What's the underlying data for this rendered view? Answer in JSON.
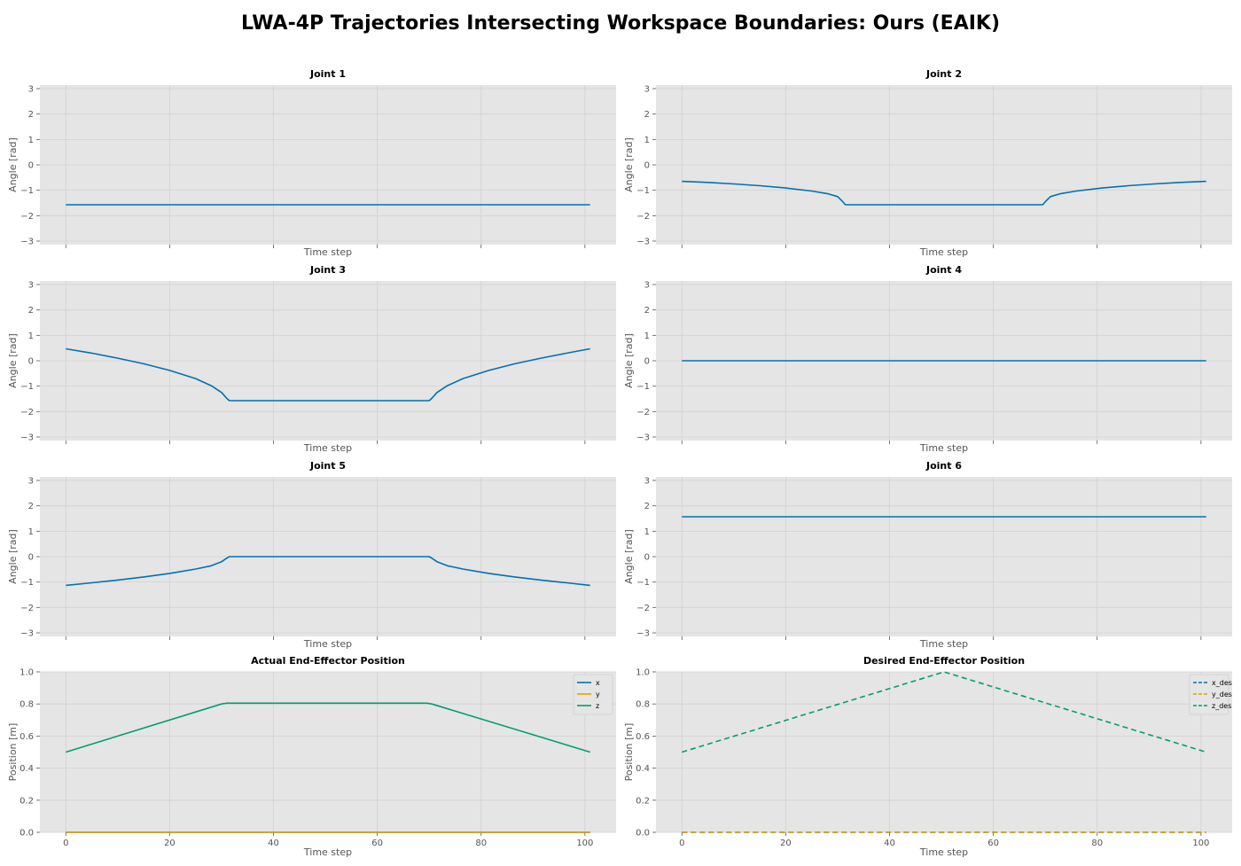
{
  "title": "LWA-4P Trajectories Intersecting Workspace Boundaries: Ours (EAIK)",
  "chart_data": [
    {
      "type": "line",
      "title": "Joint 1",
      "xlabel": "Time step",
      "ylabel": "Angle [rad]",
      "xlim": [
        -5,
        106
      ],
      "ylim": [
        -3.14,
        3.14
      ],
      "xticks": [
        0,
        20,
        40,
        60,
        80,
        100
      ],
      "xticklabels_visible": false,
      "yticks": [
        -3,
        -2,
        -1,
        0,
        1,
        2,
        3
      ],
      "grid": true,
      "series": [
        {
          "color": "#0072B2",
          "dash": "",
          "points": [
            [
              0,
              -1.571
            ],
            [
              101,
              -1.571
            ]
          ]
        }
      ]
    },
    {
      "type": "line",
      "title": "Joint 2",
      "xlabel": "Time step",
      "ylabel": "Angle [rad]",
      "xlim": [
        -5,
        106
      ],
      "ylim": [
        -3.14,
        3.14
      ],
      "xticks": [
        0,
        20,
        40,
        60,
        80,
        100
      ],
      "xticklabels_visible": false,
      "yticks": [
        -3,
        -2,
        -1,
        0,
        1,
        2,
        3
      ],
      "grid": true,
      "series": [
        {
          "color": "#0072B2",
          "dash": "",
          "points": [
            [
              0,
              -0.65
            ],
            [
              5,
              -0.69
            ],
            [
              10,
              -0.75
            ],
            [
              15,
              -0.82
            ],
            [
              20,
              -0.91
            ],
            [
              25,
              -1.03
            ],
            [
              28,
              -1.13
            ],
            [
              30,
              -1.25
            ],
            [
              31,
              -1.45
            ],
            [
              31.5,
              -1.571
            ],
            [
              69.5,
              -1.571
            ],
            [
              70,
              -1.45
            ],
            [
              71,
              -1.25
            ],
            [
              73,
              -1.13
            ],
            [
              76,
              -1.03
            ],
            [
              81,
              -0.91
            ],
            [
              86,
              -0.82
            ],
            [
              91,
              -0.75
            ],
            [
              96,
              -0.69
            ],
            [
              101,
              -0.65
            ]
          ]
        }
      ]
    },
    {
      "type": "line",
      "title": "Joint 3",
      "xlabel": "Time step",
      "ylabel": "Angle [rad]",
      "xlim": [
        -5,
        106
      ],
      "ylim": [
        -3.14,
        3.14
      ],
      "xticks": [
        0,
        20,
        40,
        60,
        80,
        100
      ],
      "xticklabels_visible": false,
      "yticks": [
        -3,
        -2,
        -1,
        0,
        1,
        2,
        3
      ],
      "grid": true,
      "series": [
        {
          "color": "#0072B2",
          "dash": "",
          "points": [
            [
              0,
              0.47
            ],
            [
              5,
              0.3
            ],
            [
              10,
              0.1
            ],
            [
              15,
              -0.12
            ],
            [
              20,
              -0.38
            ],
            [
              25,
              -0.7
            ],
            [
              28,
              -0.98
            ],
            [
              30,
              -1.25
            ],
            [
              31,
              -1.48
            ],
            [
              31.5,
              -1.571
            ],
            [
              70,
              -1.571
            ],
            [
              70.5,
              -1.48
            ],
            [
              71.5,
              -1.25
            ],
            [
              73.5,
              -0.98
            ],
            [
              76.5,
              -0.7
            ],
            [
              81.5,
              -0.38
            ],
            [
              86.5,
              -0.12
            ],
            [
              91.5,
              0.1
            ],
            [
              96.5,
              0.3
            ],
            [
              101,
              0.47
            ]
          ]
        }
      ]
    },
    {
      "type": "line",
      "title": "Joint 4",
      "xlabel": "Time step",
      "ylabel": "Angle [rad]",
      "xlim": [
        -5,
        106
      ],
      "ylim": [
        -3.14,
        3.14
      ],
      "xticks": [
        0,
        20,
        40,
        60,
        80,
        100
      ],
      "xticklabels_visible": false,
      "yticks": [
        -3,
        -2,
        -1,
        0,
        1,
        2,
        3
      ],
      "grid": true,
      "series": [
        {
          "color": "#0072B2",
          "dash": "",
          "points": [
            [
              0,
              0
            ],
            [
              101,
              0
            ]
          ]
        }
      ]
    },
    {
      "type": "line",
      "title": "Joint 5",
      "xlabel": "Time step",
      "ylabel": "Angle [rad]",
      "xlim": [
        -5,
        106
      ],
      "ylim": [
        -3.14,
        3.14
      ],
      "xticks": [
        0,
        20,
        40,
        60,
        80,
        100
      ],
      "xticklabels_visible": false,
      "yticks": [
        -3,
        -2,
        -1,
        0,
        1,
        2,
        3
      ],
      "grid": true,
      "series": [
        {
          "color": "#0072B2",
          "dash": "",
          "points": [
            [
              0,
              -1.13
            ],
            [
              5,
              -1.03
            ],
            [
              10,
              -0.92
            ],
            [
              15,
              -0.8
            ],
            [
              20,
              -0.66
            ],
            [
              25,
              -0.49
            ],
            [
              28,
              -0.36
            ],
            [
              30,
              -0.2
            ],
            [
              31,
              -0.06
            ],
            [
              31.5,
              0
            ],
            [
              70,
              0
            ],
            [
              70.5,
              -0.06
            ],
            [
              71.5,
              -0.2
            ],
            [
              73.5,
              -0.36
            ],
            [
              76.5,
              -0.49
            ],
            [
              81.5,
              -0.66
            ],
            [
              86.5,
              -0.8
            ],
            [
              91.5,
              -0.92
            ],
            [
              96.5,
              -1.03
            ],
            [
              101,
              -1.13
            ]
          ]
        }
      ]
    },
    {
      "type": "line",
      "title": "Joint 6",
      "xlabel": "Time step",
      "ylabel": "Angle [rad]",
      "xlim": [
        -5,
        106
      ],
      "ylim": [
        -3.14,
        3.14
      ],
      "xticks": [
        0,
        20,
        40,
        60,
        80,
        100
      ],
      "xticklabels_visible": false,
      "yticks": [
        -3,
        -2,
        -1,
        0,
        1,
        2,
        3
      ],
      "grid": true,
      "series": [
        {
          "color": "#0072B2",
          "dash": "",
          "points": [
            [
              0,
              1.571
            ],
            [
              101,
              1.571
            ]
          ]
        }
      ]
    },
    {
      "type": "line",
      "title": "Actual End-Effector Position",
      "xlabel": "Time step",
      "ylabel": "Position [m]",
      "xlim": [
        -5,
        106
      ],
      "ylim": [
        0,
        1
      ],
      "xticks": [
        0,
        20,
        40,
        60,
        80,
        100
      ],
      "xticklabels_visible": true,
      "yticks": [
        0,
        0.2,
        0.4,
        0.6,
        0.8,
        1.0
      ],
      "ytick_decimals": 1,
      "grid": true,
      "legend": "top-right",
      "series": [
        {
          "name": "x",
          "color": "#0072B2",
          "dash": "",
          "points": [
            [
              0,
              0
            ],
            [
              101,
              0
            ]
          ]
        },
        {
          "name": "y",
          "color": "#E69F00",
          "dash": "",
          "points": [
            [
              0,
              0
            ],
            [
              101,
              0
            ]
          ]
        },
        {
          "name": "z",
          "color": "#009E73",
          "dash": "",
          "points": [
            [
              0,
              0.5
            ],
            [
              30,
              0.8
            ],
            [
              31,
              0.805
            ],
            [
              69.5,
              0.805
            ],
            [
              70.5,
              0.8
            ],
            [
              101,
              0.5
            ]
          ]
        }
      ]
    },
    {
      "type": "line",
      "title": "Desired End-Effector Position",
      "xlabel": "Time step",
      "ylabel": "Position [m]",
      "xlim": [
        -5,
        106
      ],
      "ylim": [
        0,
        1
      ],
      "xticks": [
        0,
        20,
        40,
        60,
        80,
        100
      ],
      "xticklabels_visible": true,
      "yticks": [
        0,
        0.2,
        0.4,
        0.6,
        0.8,
        1.0
      ],
      "ytick_decimals": 1,
      "grid": true,
      "legend": "top-right",
      "series": [
        {
          "name": "x_des",
          "color": "#0072B2",
          "dash": "6,4",
          "points": [
            [
              0,
              0
            ],
            [
              101,
              0
            ]
          ]
        },
        {
          "name": "y_des",
          "color": "#E69F00",
          "dash": "6,4",
          "points": [
            [
              0,
              0
            ],
            [
              101,
              0
            ]
          ]
        },
        {
          "name": "z_des",
          "color": "#009E73",
          "dash": "6,4",
          "points": [
            [
              0,
              0.5
            ],
            [
              50.5,
              1.0
            ],
            [
              101,
              0.5
            ]
          ]
        }
      ]
    }
  ]
}
